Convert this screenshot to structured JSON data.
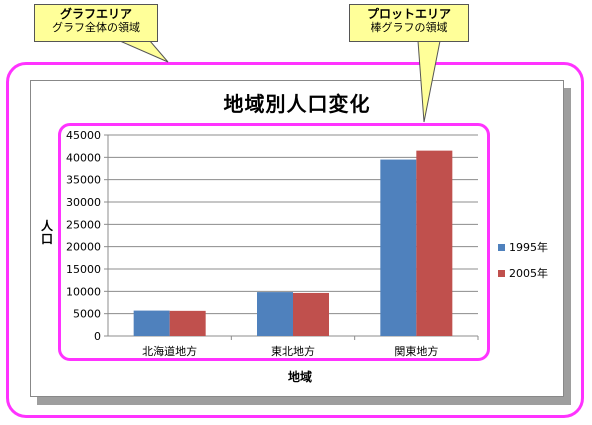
{
  "callouts": {
    "chart_area": {
      "title": "グラフエリア",
      "subtitle": "グラフ全体の領域"
    },
    "plot_area": {
      "title": "プロットエリア",
      "subtitle": "棒グラフの領域"
    }
  },
  "colors": {
    "highlight": "#ff33ff",
    "callout_bg": "#ffff99",
    "series_1995": "#4f81bd",
    "series_2005": "#c0504d"
  },
  "chart_data": {
    "type": "bar",
    "title": "地域別人口変化",
    "xlabel": "地域",
    "ylabel": "人口",
    "categories": [
      "北海道地方",
      "東北地方",
      "関東地方"
    ],
    "series": [
      {
        "name": "1995年",
        "values": [
          5690,
          9830,
          39500
        ]
      },
      {
        "name": "2005年",
        "values": [
          5630,
          9640,
          41500
        ]
      }
    ],
    "ylim": [
      0,
      45000
    ],
    "yticks": [
      "0",
      "5000",
      "10000",
      "15000",
      "20000",
      "25000",
      "30000",
      "35000",
      "40000",
      "45000"
    ],
    "grid": true,
    "legend": "right"
  }
}
